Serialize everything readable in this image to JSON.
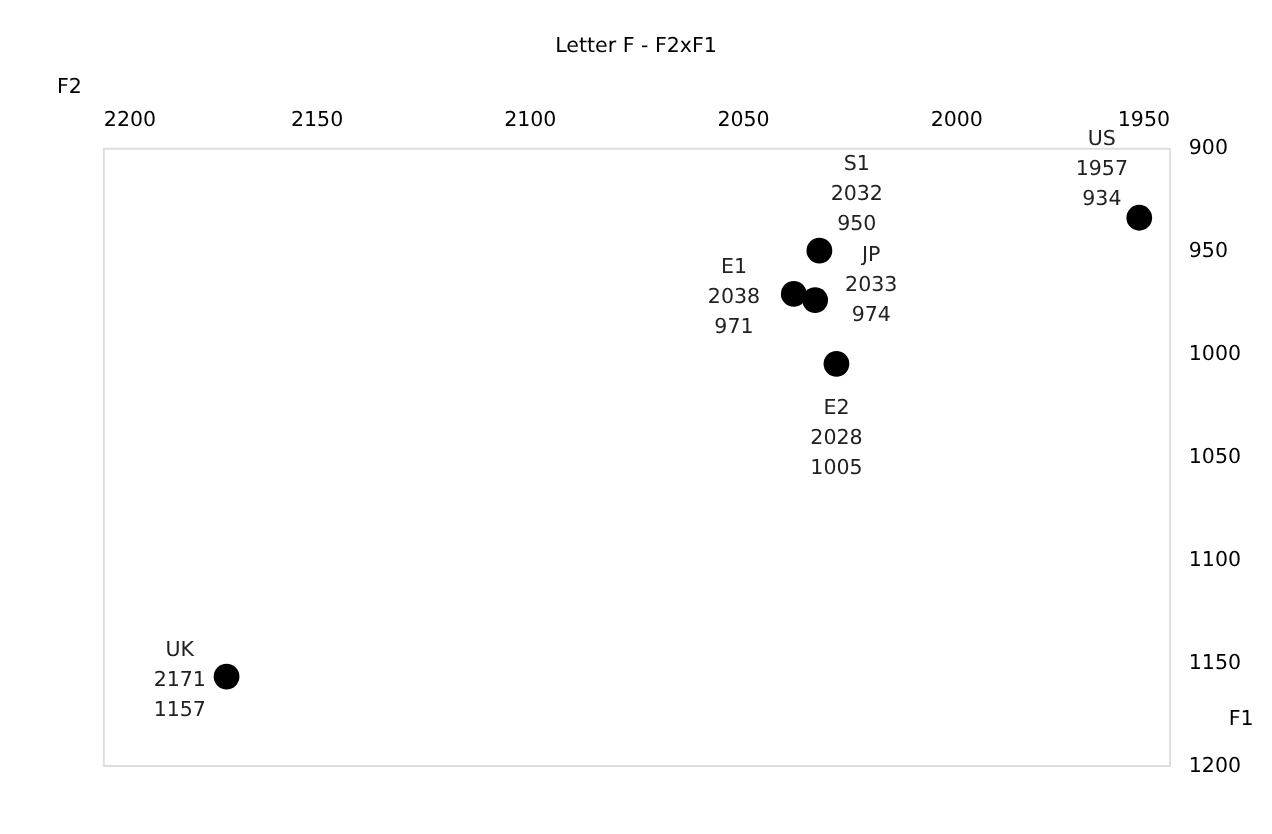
{
  "chart_data": {
    "type": "scatter",
    "title": "Letter F - F2xF1",
    "xlabel": "F2",
    "ylabel": "F1",
    "x": [
      2171,
      2038,
      2032,
      2033,
      2028,
      1957
    ],
    "series": [
      {
        "color": "#000000",
        "values": [
          1157,
          971,
          950,
          974,
          1005,
          934
        ]
      }
    ],
    "xlim": [
      2200,
      1950
    ],
    "xticks": [
      2200,
      2150,
      2100,
      2050,
      2000,
      1950
    ],
    "ylim": [
      1200,
      900
    ],
    "yticks": [
      900,
      950,
      1000,
      1050,
      1100,
      1150,
      1200
    ],
    "marker": "circle",
    "grid": false,
    "annotations": [
      {
        "text": "UK\n2171\n1157",
        "x": 2171,
        "y": 1157
      },
      {
        "text": "E1\n2038\n971",
        "x": 2038,
        "y": 971
      },
      {
        "text": "S1\n2032\n950",
        "x": 2032,
        "y": 950
      },
      {
        "text": "JP\n2033\n974",
        "x": 2033,
        "y": 974
      },
      {
        "text": "E2\n2028\n1005",
        "x": 2028,
        "y": 1005
      },
      {
        "text": "US\n1957\n934",
        "x": 1957,
        "y": 934
      }
    ]
  }
}
